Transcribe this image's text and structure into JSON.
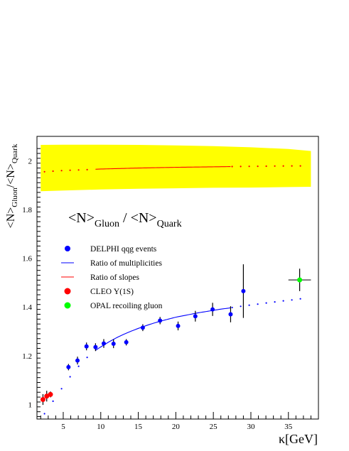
{
  "chart_data": {
    "type": "scatter",
    "xlim": [
      1.5,
      39
    ],
    "ylim": [
      0.94,
      2.1
    ],
    "x_ticks": [
      5,
      10,
      15,
      20,
      25,
      30,
      35
    ],
    "y_ticks": [
      1,
      1.2,
      1.4,
      1.6,
      1.8,
      2
    ],
    "y_tick_labels": [
      "1",
      "1.2",
      "1.4",
      "1.6",
      "1.8",
      "2"
    ],
    "xlabel": "κ[GeV]",
    "ylabel": {
      "part1": "<N>",
      "sub1": "Gluon",
      "part2": "/<N>",
      "sub2": "Quark"
    },
    "formula": {
      "part1": "<N>",
      "sub1": "Gluon",
      "part2": " / <N>",
      "sub2": "Quark"
    },
    "grid": false,
    "legend_position": "middle-left",
    "series": [
      {
        "name": "DELPHI qqg events",
        "kind": "points",
        "color": "#0000ff",
        "x": [
          5.7,
          6.9,
          8.1,
          9.3,
          10.4,
          11.7,
          13.4,
          15.6,
          17.9,
          20.3,
          22.6,
          24.9,
          27.3,
          29.0
        ],
        "y": [
          1.153,
          1.18,
          1.238,
          1.235,
          1.25,
          1.249,
          1.255,
          1.315,
          1.344,
          1.322,
          1.362,
          1.39,
          1.37,
          1.465
        ],
        "err": [
          0.013,
          0.016,
          0.016,
          0.016,
          0.018,
          0.018,
          0.013,
          0.014,
          0.015,
          0.018,
          0.022,
          0.027,
          0.033,
          0.11
        ]
      },
      {
        "name": "Ratio of multiplicities",
        "kind": "curve",
        "color": "#0000ff",
        "solid_range": [
          9.3,
          27.3
        ],
        "x": [
          2.5,
          3.0,
          3.5,
          4.0,
          4.5,
          5.0,
          5.5,
          6.0,
          6.5,
          7.0,
          7.5,
          8.0,
          8.5,
          9.0,
          9.5,
          10.0,
          11.0,
          12.0,
          13.0,
          14.0,
          15.0,
          16.0,
          17.0,
          18.0,
          19.0,
          20.0,
          21.0,
          22.0,
          23.0,
          24.0,
          25.0,
          26.0,
          27.0,
          28.0,
          29.0,
          30.0,
          31.0,
          32.0,
          33.0,
          34.0,
          35.0,
          36.0,
          37.0
        ],
        "y": [
          0.962,
          0.985,
          1.007,
          1.03,
          1.052,
          1.075,
          1.097,
          1.117,
          1.137,
          1.155,
          1.172,
          1.188,
          1.202,
          1.215,
          1.226,
          1.236,
          1.255,
          1.272,
          1.287,
          1.3,
          1.312,
          1.323,
          1.333,
          1.342,
          1.35,
          1.358,
          1.364,
          1.37,
          1.376,
          1.381,
          1.386,
          1.391,
          1.395,
          1.4,
          1.404,
          1.408,
          1.412,
          1.416,
          1.42,
          1.424,
          1.427,
          1.431,
          1.435
        ]
      },
      {
        "name": "Ratio of slopes",
        "kind": "curve",
        "color": "#ff0000",
        "solid_range": [
          9.3,
          27.3
        ],
        "x": [
          2.5,
          5,
          8,
          10,
          15,
          20,
          25,
          27.3,
          30,
          33,
          37
        ],
        "y": [
          1.955,
          1.96,
          1.963,
          1.966,
          1.97,
          1.973,
          1.975,
          1.976,
          1.977,
          1.978,
          1.979
        ]
      },
      {
        "name": "CLEO Υ(1S)",
        "kind": "points",
        "color": "#ff0000",
        "x": [
          2.3,
          2.8,
          3.3
        ],
        "y": [
          1.02,
          1.034,
          1.041
        ],
        "err": [
          0.022,
          0.022,
          0.012
        ]
      },
      {
        "name": "OPAL recoiling gluon",
        "kind": "points",
        "color": "#00ff00",
        "x": [
          36.5
        ],
        "y": [
          1.511
        ],
        "err": [
          0.046
        ],
        "xerr": [
          1.5
        ]
      }
    ],
    "band": {
      "color": "#ffff00",
      "x": [
        2.0,
        5,
        10,
        15,
        20,
        25,
        30,
        35,
        38
      ],
      "upper": [
        2.065,
        2.066,
        2.066,
        2.065,
        2.063,
        2.06,
        2.055,
        2.048,
        2.04
      ],
      "lower": [
        1.875,
        1.878,
        1.882,
        1.885,
        1.887,
        1.889,
        1.89,
        1.892,
        1.893
      ]
    }
  }
}
